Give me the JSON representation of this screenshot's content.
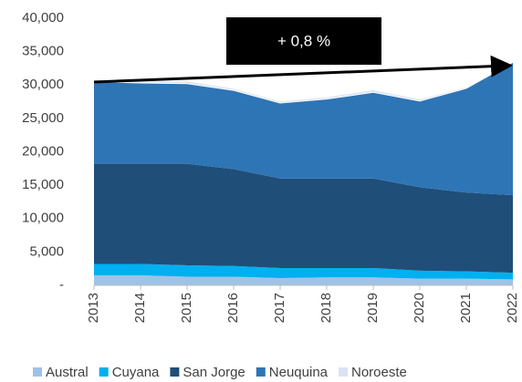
{
  "chart_data": {
    "type": "stacked_area",
    "annotation": "+ 0,8 %",
    "categories": [
      "2013",
      "2014",
      "2015",
      "2016",
      "2017",
      "2018",
      "2019",
      "2020",
      "2021",
      "2022"
    ],
    "series": [
      {
        "name": "Austral",
        "color": "#9dc3e6",
        "values": [
          1500,
          1500,
          1300,
          1300,
          1100,
          1200,
          1200,
          1000,
          1000,
          900
        ]
      },
      {
        "name": "Cuyana",
        "color": "#00b0f0",
        "values": [
          1700,
          1700,
          1700,
          1600,
          1500,
          1400,
          1400,
          1200,
          1100,
          1000
        ]
      },
      {
        "name": "San Jorge",
        "color": "#1f4e79",
        "values": [
          15000,
          15000,
          15200,
          14500,
          13400,
          13400,
          13400,
          12500,
          11800,
          11600
        ]
      },
      {
        "name": "Neuquina",
        "color": "#2e75b6",
        "values": [
          12300,
          12100,
          12000,
          11800,
          11300,
          11900,
          12900,
          12900,
          15600,
          19900
        ]
      },
      {
        "name": "Noroeste",
        "color": "#dae3f3",
        "values": [
          300,
          300,
          400,
          300,
          300,
          300,
          400,
          300,
          200,
          200
        ]
      }
    ],
    "ylim": [
      0,
      40000
    ],
    "yticks": [
      {
        "value": 0,
        "label": "-"
      },
      {
        "value": 5000,
        "label": "5,000"
      },
      {
        "value": 10000,
        "label": "10,000"
      },
      {
        "value": 15000,
        "label": "15,000"
      },
      {
        "value": 20000,
        "label": "20,000"
      },
      {
        "value": 25000,
        "label": "25,000"
      },
      {
        "value": 30000,
        "label": "30,000"
      },
      {
        "value": 35000,
        "label": "35,000"
      },
      {
        "value": 40000,
        "label": "40,000"
      }
    ],
    "legend": "bottom"
  }
}
